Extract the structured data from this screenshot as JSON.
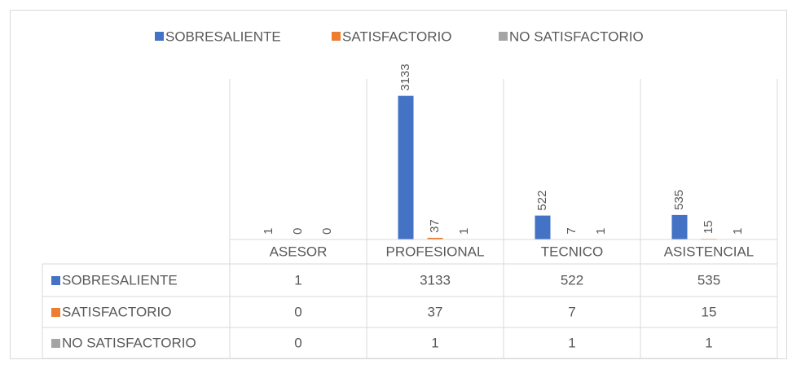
{
  "chart_data": {
    "type": "bar",
    "categories": [
      "ASESOR",
      "PROFESIONAL",
      "TECNICO",
      "ASISTENCIAL"
    ],
    "series": [
      {
        "name": "SOBRESALIENTE",
        "color": "#4472c4",
        "values": [
          1,
          3133,
          522,
          535
        ]
      },
      {
        "name": "SATISFACTORIO",
        "color": "#ed7d31",
        "values": [
          0,
          37,
          7,
          15
        ]
      },
      {
        "name": "NO SATISFACTORIO",
        "color": "#a5a5a5",
        "values": [
          0,
          1,
          1,
          1
        ]
      }
    ],
    "ylim": [
      0,
      3500
    ],
    "legend": "top",
    "data_table": true
  }
}
